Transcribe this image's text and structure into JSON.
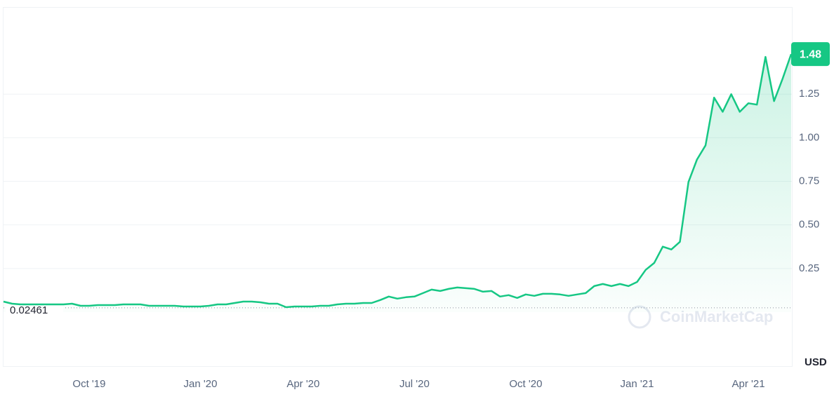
{
  "chart_data": {
    "type": "line",
    "categories": [
      null,
      null,
      null,
      null,
      null,
      null,
      null,
      null,
      null,
      null,
      "Oct '19",
      null,
      null,
      null,
      null,
      null,
      null,
      null,
      null,
      null,
      null,
      null,
      null,
      "Jan '20",
      null,
      null,
      null,
      null,
      null,
      null,
      null,
      null,
      null,
      null,
      null,
      "Apr '20",
      null,
      null,
      null,
      null,
      null,
      null,
      null,
      null,
      null,
      null,
      null,
      null,
      "Jul '20",
      null,
      null,
      null,
      null,
      null,
      null,
      null,
      null,
      null,
      null,
      null,
      null,
      "Oct '20",
      null,
      null,
      null,
      null,
      null,
      null,
      null,
      null,
      null,
      null,
      null,
      null,
      "Jan '21",
      null,
      null,
      null,
      null,
      null,
      null,
      null,
      null,
      null,
      null,
      null,
      null,
      "Apr '21",
      null,
      null,
      null,
      null,
      null
    ],
    "values": [
      0.06,
      0.048,
      0.044,
      0.044,
      0.044,
      0.044,
      0.044,
      0.044,
      0.048,
      0.036,
      0.036,
      0.04,
      0.04,
      0.04,
      0.044,
      0.044,
      0.044,
      0.036,
      0.036,
      0.036,
      0.036,
      0.032,
      0.032,
      0.032,
      0.036,
      0.044,
      0.044,
      0.052,
      0.06,
      0.06,
      0.056,
      0.048,
      0.048,
      0.028,
      0.032,
      0.032,
      0.032,
      0.036,
      0.036,
      0.044,
      0.048,
      0.048,
      0.052,
      0.052,
      0.069,
      0.089,
      0.077,
      0.085,
      0.089,
      0.109,
      0.129,
      0.121,
      0.133,
      0.141,
      0.137,
      0.133,
      0.117,
      0.121,
      0.089,
      0.097,
      0.081,
      0.101,
      0.093,
      0.105,
      0.105,
      0.101,
      0.093,
      0.101,
      0.109,
      0.149,
      0.161,
      0.149,
      0.161,
      0.149,
      0.173,
      0.242,
      0.282,
      0.375,
      0.359,
      0.403,
      0.746,
      0.875,
      0.956,
      1.23,
      1.149,
      1.25,
      1.149,
      1.198,
      1.19,
      1.464,
      1.21,
      1.339,
      1.48
    ],
    "color": "#16c784",
    "ylim": [
      -0.31,
      1.75
    ],
    "yticks": [
      0.25,
      {
        "value": 0.5,
        "label": "0.50"
      },
      0.75,
      {
        "value": 1,
        "label": "1.00"
      },
      1.25
    ],
    "grid": true,
    "reference_line": 0.02461,
    "currency": "USD",
    "watermark": "CoinMarketCap"
  }
}
